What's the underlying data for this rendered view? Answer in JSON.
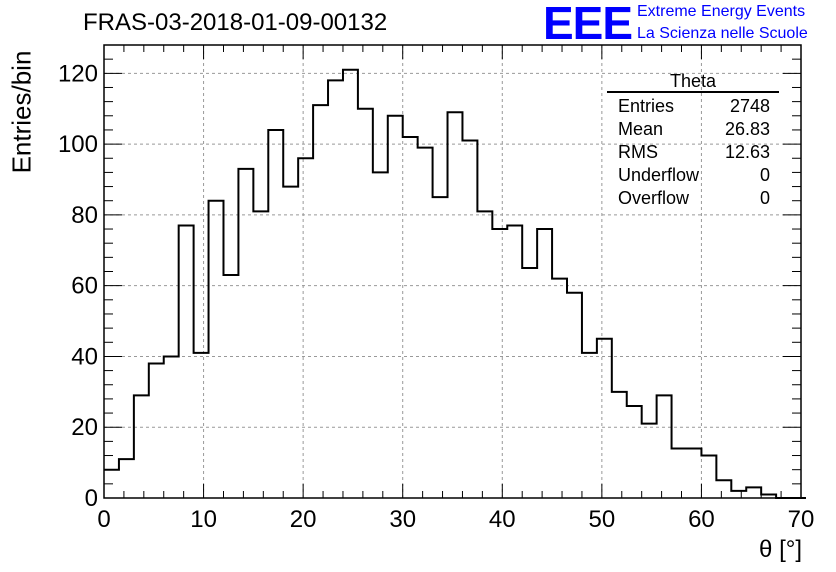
{
  "header": {
    "title": "FRAS-03-2018-01-09-00132",
    "logo_text": "EEE",
    "logo_line1": "Extreme Energy Events",
    "logo_line2": "La Scienza nelle Scuole",
    "logo_color": "#0000ff"
  },
  "stats_box": {
    "title": "Theta",
    "rows": [
      {
        "label": "Entries",
        "value": "2748"
      },
      {
        "label": "Mean",
        "value": "26.83"
      },
      {
        "label": "RMS",
        "value": "12.63"
      },
      {
        "label": "Underflow",
        "value": "0"
      },
      {
        "label": "Overflow",
        "value": "0"
      }
    ]
  },
  "chart_data": {
    "type": "bar",
    "histogram": true,
    "title": "FRAS-03-2018-01-09-00132",
    "xlabel": "θ [°]",
    "ylabel": "Entries/bin",
    "xlim": [
      0,
      70
    ],
    "ylim": [
      0,
      128
    ],
    "grid": true,
    "bin_width": 1.5,
    "xticks": [
      0,
      10,
      20,
      30,
      40,
      50,
      60,
      70
    ],
    "yticks": [
      0,
      20,
      40,
      60,
      80,
      100,
      120
    ],
    "values": [
      8,
      11,
      29,
      38,
      40,
      77,
      41,
      84,
      63,
      93,
      81,
      104,
      88,
      96,
      111,
      118,
      121,
      110,
      92,
      108,
      102,
      99,
      85,
      109,
      101,
      81,
      76,
      77,
      65,
      76,
      62,
      58,
      41,
      45,
      30,
      26,
      21,
      29,
      14,
      14,
      12,
      5,
      2,
      3,
      1,
      0,
      0
    ]
  }
}
